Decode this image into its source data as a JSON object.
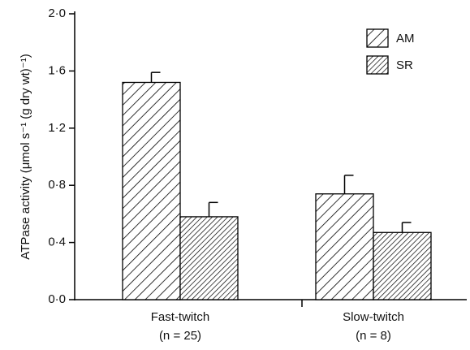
{
  "chart_data": {
    "type": "bar",
    "ylabel": "ATPase activity (μmol s⁻¹ (g dry wt)⁻¹)",
    "categories": [
      "Fast-twitch",
      "Slow-twitch"
    ],
    "category_notes": [
      "(n = 25)",
      "(n = 8)"
    ],
    "series": [
      {
        "name": "AM",
        "color": "#000000",
        "values": [
          1.52,
          0.74
        ],
        "errors": [
          0.07,
          0.13
        ]
      },
      {
        "name": "SR",
        "color": "#000000",
        "values": [
          0.58,
          0.47
        ],
        "errors": [
          0.1,
          0.07
        ]
      }
    ],
    "ylim": [
      0,
      2
    ],
    "yticks": [
      {
        "value": 0,
        "label": "0·0"
      },
      {
        "value": 0.4,
        "label": "0·4"
      },
      {
        "value": 0.8,
        "label": "0·8"
      },
      {
        "value": 1.2,
        "label": "1·2"
      },
      {
        "value": 1.6,
        "label": "1·6"
      },
      {
        "value": 2,
        "label": "2·0"
      }
    ],
    "legend": "upper right"
  }
}
